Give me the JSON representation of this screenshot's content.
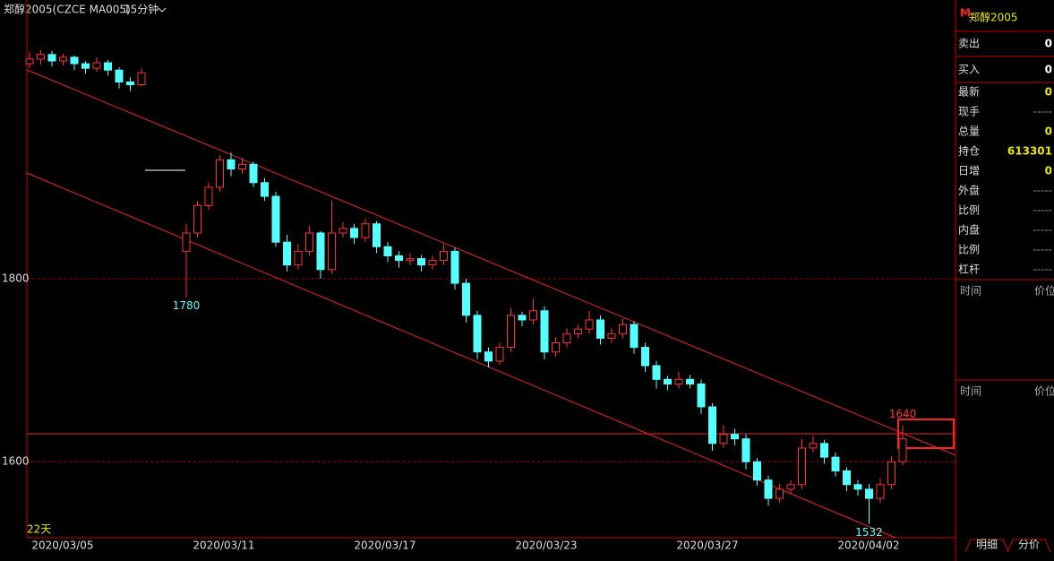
{
  "header": {
    "symbol": "郑醇2005(CZCE MA005)",
    "period": "15分钟"
  },
  "chart": {
    "ylim": [
      1517,
      2085
    ],
    "yticks": [
      1600,
      1800
    ],
    "dates": [
      "2020/03/05",
      "2020/03/11",
      "2020/03/17",
      "2020/03/23",
      "2020/03/27",
      "2020/04/02"
    ],
    "span": "22天",
    "annotations": [
      {
        "index": 14,
        "label": "1780",
        "value": 1780
      },
      {
        "index": 75,
        "label": "1532",
        "value": 1532
      },
      {
        "index": 78,
        "label": "1640",
        "value": 1640
      }
    ],
    "candles": [
      [
        2035,
        2048,
        2030,
        2040
      ],
      [
        2040,
        2050,
        2034,
        2045
      ],
      [
        2045,
        2049,
        2032,
        2038
      ],
      [
        2038,
        2046,
        2033,
        2042
      ],
      [
        2042,
        2044,
        2028,
        2035
      ],
      [
        2035,
        2038,
        2024,
        2030
      ],
      [
        2030,
        2042,
        2026,
        2036
      ],
      [
        2036,
        2039,
        2022,
        2028
      ],
      [
        2028,
        2031,
        2008,
        2015
      ],
      [
        2015,
        2020,
        2005,
        2012
      ],
      [
        2012,
        2030,
        2010,
        2025
      ],
      null,
      null,
      null,
      [
        1830,
        1860,
        1780,
        1850
      ],
      [
        1850,
        1885,
        1845,
        1880
      ],
      [
        1880,
        1905,
        1875,
        1900
      ],
      [
        1900,
        1935,
        1895,
        1930
      ],
      [
        1930,
        1938,
        1912,
        1920
      ],
      [
        1920,
        1932,
        1915,
        1925
      ],
      [
        1925,
        1928,
        1900,
        1905
      ],
      [
        1905,
        1910,
        1885,
        1890
      ],
      [
        1890,
        1895,
        1835,
        1840
      ],
      [
        1840,
        1848,
        1808,
        1815
      ],
      [
        1815,
        1838,
        1810,
        1830
      ],
      [
        1830,
        1858,
        1825,
        1850
      ],
      [
        1850,
        1852,
        1800,
        1810
      ],
      [
        1810,
        1885,
        1805,
        1850
      ],
      [
        1850,
        1862,
        1845,
        1855
      ],
      [
        1855,
        1860,
        1838,
        1845
      ],
      [
        1845,
        1866,
        1840,
        1860
      ],
      [
        1860,
        1863,
        1828,
        1835
      ],
      [
        1835,
        1840,
        1818,
        1825
      ],
      [
        1825,
        1830,
        1812,
        1820
      ],
      [
        1820,
        1828,
        1815,
        1822
      ],
      [
        1822,
        1826,
        1808,
        1815
      ],
      [
        1815,
        1825,
        1810,
        1820
      ],
      [
        1820,
        1838,
        1815,
        1830
      ],
      [
        1830,
        1834,
        1788,
        1795
      ],
      [
        1795,
        1800,
        1752,
        1760
      ],
      [
        1760,
        1765,
        1712,
        1720
      ],
      [
        1720,
        1725,
        1703,
        1710
      ],
      [
        1710,
        1730,
        1706,
        1725
      ],
      [
        1725,
        1768,
        1720,
        1760
      ],
      [
        1760,
        1764,
        1748,
        1755
      ],
      [
        1755,
        1778,
        1750,
        1765
      ],
      [
        1765,
        1770,
        1712,
        1720
      ],
      [
        1720,
        1736,
        1715,
        1730
      ],
      [
        1730,
        1746,
        1725,
        1740
      ],
      [
        1740,
        1750,
        1735,
        1745
      ],
      [
        1745,
        1765,
        1740,
        1755
      ],
      [
        1755,
        1760,
        1728,
        1735
      ],
      [
        1735,
        1746,
        1730,
        1740
      ],
      [
        1740,
        1756,
        1735,
        1750
      ],
      [
        1750,
        1754,
        1718,
        1725
      ],
      [
        1725,
        1730,
        1698,
        1705
      ],
      [
        1705,
        1710,
        1680,
        1690
      ],
      [
        1690,
        1694,
        1678,
        1685
      ],
      [
        1685,
        1698,
        1680,
        1690
      ],
      [
        1690,
        1695,
        1680,
        1685
      ],
      [
        1685,
        1690,
        1652,
        1660
      ],
      [
        1660,
        1664,
        1612,
        1620
      ],
      [
        1620,
        1640,
        1615,
        1630
      ],
      [
        1630,
        1636,
        1618,
        1625
      ],
      [
        1625,
        1630,
        1592,
        1600
      ],
      [
        1600,
        1604,
        1574,
        1580
      ],
      [
        1580,
        1585,
        1552,
        1560
      ],
      [
        1560,
        1576,
        1555,
        1570
      ],
      [
        1570,
        1580,
        1565,
        1575
      ],
      [
        1575,
        1625,
        1570,
        1615
      ],
      [
        1615,
        1628,
        1610,
        1620
      ],
      [
        1620,
        1624,
        1598,
        1605
      ],
      [
        1605,
        1610,
        1584,
        1590
      ],
      [
        1590,
        1594,
        1568,
        1575
      ],
      [
        1575,
        1580,
        1563,
        1570
      ],
      [
        1570,
        1576,
        1532,
        1560
      ],
      [
        1560,
        1582,
        1555,
        1575
      ],
      [
        1575,
        1606,
        1570,
        1600
      ],
      [
        1600,
        1640,
        1596,
        1625
      ]
    ]
  },
  "panel": {
    "badge": "M",
    "title": "郑醇2005",
    "rows": [
      [
        "卖出",
        "0"
      ],
      [
        "买入",
        "0"
      ],
      [
        "最新",
        "0"
      ],
      [
        "现手",
        "-----"
      ],
      [
        "总量",
        "0"
      ],
      [
        "持仓",
        "613301"
      ],
      [
        "日增",
        "0"
      ],
      [
        "外盘",
        "-----"
      ],
      [
        "比例",
        "-----"
      ],
      [
        "内盘",
        "-----"
      ],
      [
        "比例",
        "-----"
      ],
      [
        "杠杆",
        "-----"
      ]
    ],
    "heads": [
      [
        "时间",
        "价位"
      ],
      [
        "时间",
        "价位"
      ]
    ]
  },
  "tabs": [
    "明细",
    "分价"
  ]
}
